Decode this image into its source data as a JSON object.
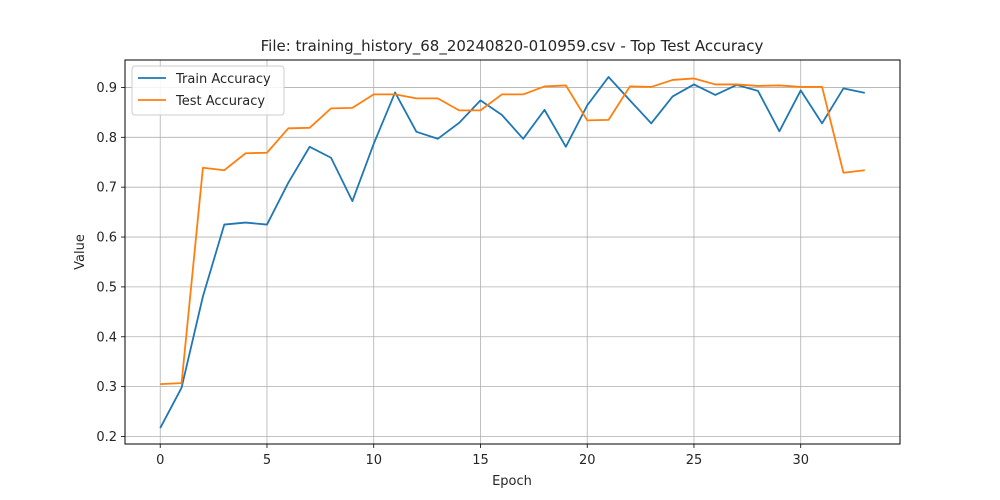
{
  "chart_data": {
    "type": "line",
    "title": "File: training_history_68_20240820-010959.csv - Top Test Accuracy",
    "xlabel": "Epoch",
    "ylabel": "Value",
    "xlim": [
      -1.65,
      34.65
    ],
    "ylim": [
      0.185,
      0.955
    ],
    "x_ticks": [
      0,
      5,
      10,
      15,
      20,
      25,
      30
    ],
    "y_ticks": [
      0.2,
      0.3,
      0.4,
      0.5,
      0.6,
      0.7,
      0.8,
      0.9
    ],
    "grid": true,
    "legend_position": "upper-left",
    "x": [
      0,
      1,
      2,
      3,
      4,
      5,
      6,
      7,
      8,
      9,
      10,
      11,
      12,
      13,
      14,
      15,
      16,
      17,
      18,
      19,
      20,
      21,
      22,
      23,
      24,
      25,
      26,
      27,
      28,
      29,
      30,
      31,
      32,
      33
    ],
    "series": [
      {
        "name": "Train Accuracy",
        "color": "#1f77b4",
        "values": [
          0.217,
          0.298,
          0.481,
          0.625,
          0.629,
          0.625,
          0.709,
          0.781,
          0.759,
          0.672,
          0.787,
          0.89,
          0.811,
          0.797,
          0.829,
          0.874,
          0.845,
          0.797,
          0.855,
          0.781,
          0.864,
          0.921,
          0.874,
          0.828,
          0.882,
          0.906,
          0.885,
          0.905,
          0.893,
          0.812,
          0.894,
          0.828,
          0.898,
          0.889
        ]
      },
      {
        "name": "Test Accuracy",
        "color": "#ff7f0e",
        "values": [
          0.305,
          0.307,
          0.739,
          0.734,
          0.768,
          0.769,
          0.818,
          0.819,
          0.858,
          0.859,
          0.886,
          0.886,
          0.878,
          0.878,
          0.854,
          0.854,
          0.886,
          0.886,
          0.902,
          0.904,
          0.834,
          0.835,
          0.902,
          0.901,
          0.915,
          0.918,
          0.906,
          0.906,
          0.903,
          0.904,
          0.901,
          0.901,
          0.729,
          0.734
        ]
      }
    ]
  }
}
